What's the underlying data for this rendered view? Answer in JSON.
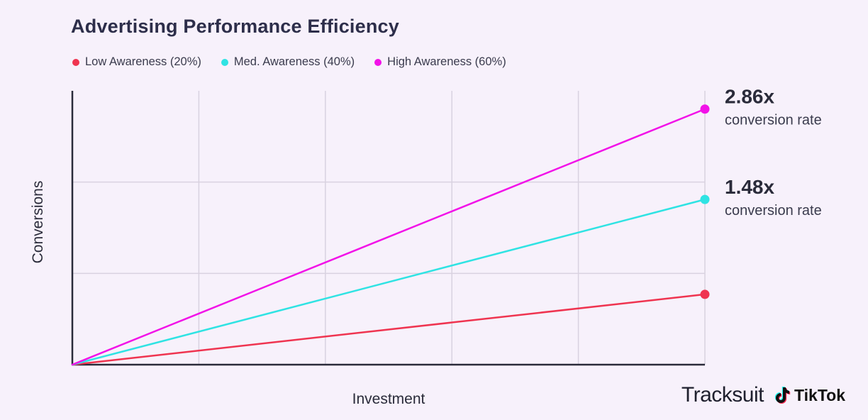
{
  "title": "Advertising Performance Efficiency",
  "legend": [
    {
      "label": "Low Awareness (20%)",
      "color": "#ef3450"
    },
    {
      "label": "Med. Awareness (40%)",
      "color": "#2fe3e3"
    },
    {
      "label": "High Awareness (60%)",
      "color": "#f212e8"
    }
  ],
  "chart_data": {
    "type": "line",
    "title": "Advertising Performance Efficiency",
    "xlabel": "Investment",
    "ylabel": "Conversions",
    "x": [
      0,
      1
    ],
    "xlim": [
      0,
      1
    ],
    "ylim": [
      0,
      3
    ],
    "grid": true,
    "series": [
      {
        "name": "Low Awareness (20%)",
        "color": "#ef3450",
        "values": [
          0,
          0.77
        ]
      },
      {
        "name": "Med. Awareness (40%)",
        "color": "#2fe3e3",
        "values": [
          0,
          1.81
        ]
      },
      {
        "name": "High Awareness (60%)",
        "color": "#f212e8",
        "values": [
          0,
          2.8
        ]
      }
    ],
    "annotations": [
      {
        "series": "High Awareness (60%)",
        "value": "2.86x",
        "text": "conversion rate"
      },
      {
        "series": "Med. Awareness (40%)",
        "value": "1.48x",
        "text": "conversion rate"
      }
    ]
  },
  "brand": {
    "tracksuit": "Tracksuit",
    "tiktok": "TikTok"
  },
  "icons": {
    "tiktok": "tiktok-note-icon"
  }
}
